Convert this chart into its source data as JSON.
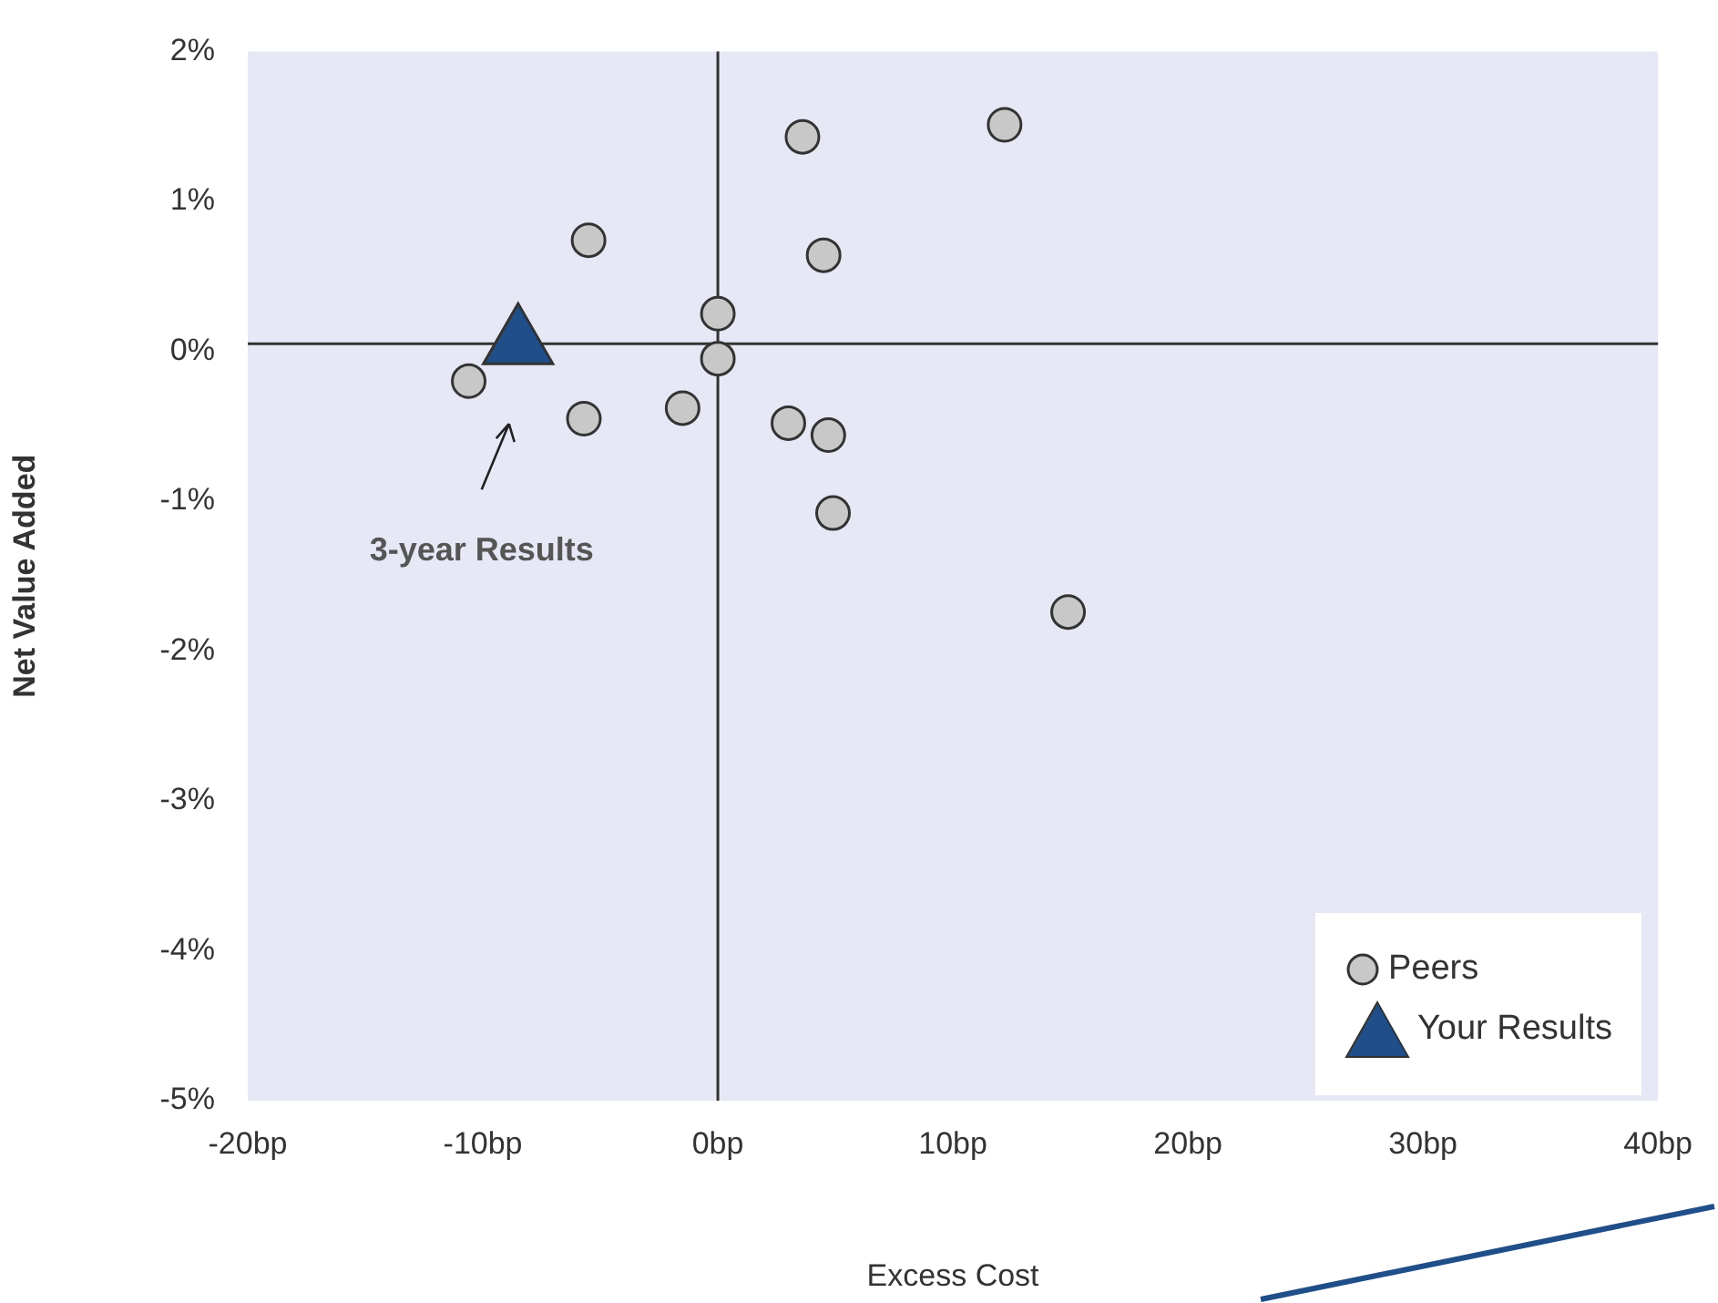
{
  "chart_data": {
    "type": "scatter",
    "xlabel": "Excess Cost",
    "ylabel": "Net Value Added",
    "xlim": [
      -20,
      40
    ],
    "xticks": [
      {
        "value": -20,
        "label": "-20bp"
      },
      {
        "value": -10,
        "label": "-10bp"
      },
      {
        "value": 0,
        "label": "0bp"
      },
      {
        "value": 10,
        "label": "10bp"
      },
      {
        "value": 20,
        "label": "20bp"
      },
      {
        "value": 30,
        "label": "30bp"
      },
      {
        "value": 40,
        "label": "40bp"
      }
    ],
    "ylim": [
      -5,
      2
    ],
    "yticks": [
      {
        "value": -5,
        "label": "-5%"
      },
      {
        "value": -4,
        "label": "-4%"
      },
      {
        "value": -3,
        "label": "-3%"
      },
      {
        "value": -2,
        "label": "-2%"
      },
      {
        "value": -1,
        "label": "-1%"
      },
      {
        "value": 0,
        "label": "0%"
      },
      {
        "value": 1,
        "label": "1%"
      },
      {
        "value": 2,
        "label": "2%"
      }
    ],
    "grid": false,
    "legend": "bottom right",
    "series": [
      {
        "name": "Peers",
        "color": "#c8c8c8",
        "marker": "circle",
        "x": [
          3.6,
          12.2,
          -5.5,
          4.5,
          0,
          0,
          -10.6,
          -5.7,
          -1.5,
          3.0,
          4.7,
          4.9,
          14.9
        ],
        "values": [
          1.43,
          1.51,
          0.74,
          0.64,
          0.25,
          -0.05,
          -0.2,
          -0.45,
          -0.38,
          -0.48,
          -0.56,
          -1.08,
          -1.74
        ]
      },
      {
        "name": "Your Results",
        "color": "#1f4e89",
        "marker": "triangle",
        "x": [
          -8.5
        ],
        "values": [
          0.05
        ]
      }
    ],
    "ref_lines": [
      {
        "axis": "x",
        "value": 0,
        "color": "#333333"
      },
      {
        "axis": "y",
        "value": 0.05,
        "color": "#333333"
      }
    ],
    "annotations": [
      "3-year Results"
    ]
  }
}
